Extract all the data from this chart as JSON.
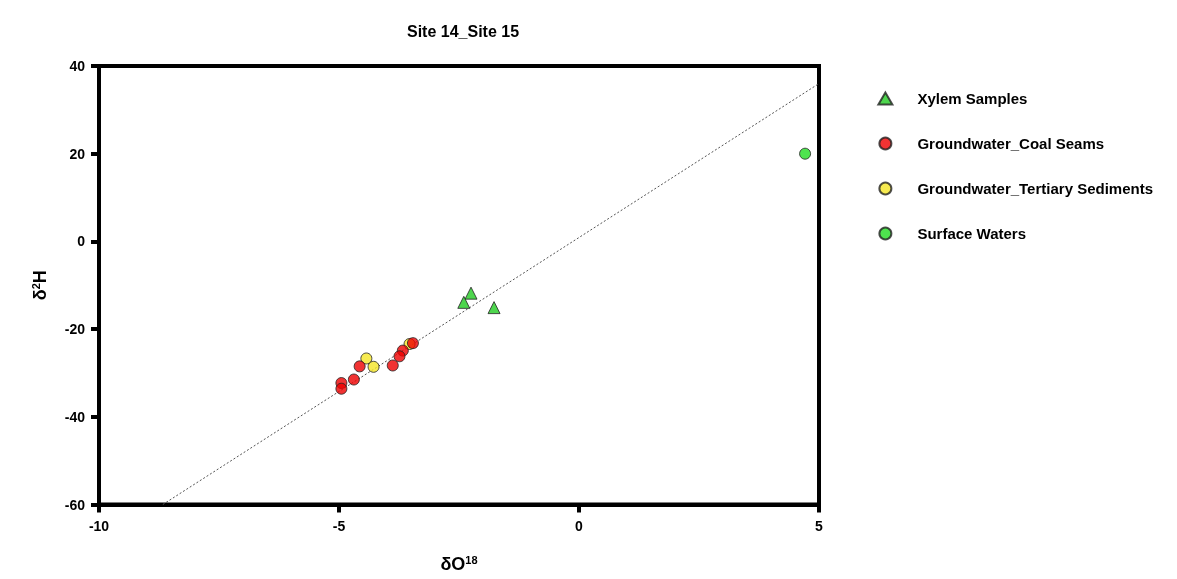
{
  "chart_data": {
    "type": "scatter",
    "title": "Site 14_Site 15",
    "xlabel": "δO$^{18}$",
    "ylabel": "δ$^{2}$H",
    "xlim": [
      -10,
      5
    ],
    "xticks": [
      -10,
      -5,
      0,
      5
    ],
    "ylim": [
      -60,
      40
    ],
    "yticks": [
      -60,
      -40,
      -20,
      0,
      20,
      40
    ],
    "grid": false,
    "legend": "right",
    "series": [
      {
        "name": "Xylem Samples",
        "color": "#22cc22",
        "marker": "triangle",
        "x": [
          -2.25,
          -2.4,
          -1.77
        ],
        "values": [
          -11.8,
          -13.9,
          -15.1
        ]
      },
      {
        "name": "Groundwater_Coal Seams",
        "color": "#ee0000",
        "marker": "circle",
        "x": [
          -3.46,
          -3.67,
          -3.74,
          -3.88,
          -4.57,
          -4.69,
          -4.95,
          -4.95
        ],
        "values": [
          -23.2,
          -24.9,
          -26.2,
          -28.3,
          -28.5,
          -31.5,
          -32.3,
          -33.6
        ]
      },
      {
        "name": "Groundwater_Tertiary Sediments",
        "color": "#f5e625",
        "marker": "circle",
        "x": [
          -3.53,
          -4.43,
          -4.28
        ],
        "values": [
          -23.4,
          -26.7,
          -28.6
        ]
      },
      {
        "name": "Surface Waters",
        "color": "#22dd22",
        "marker": "circle",
        "x": [
          4.71
        ],
        "values": [
          20
        ]
      },
      {
        "type": "line",
        "color": "#555555",
        "marker": "none",
        "line_style": "dotted",
        "x": [
          -8.67,
          5
        ],
        "values": [
          -60,
          36
        ]
      }
    ]
  }
}
